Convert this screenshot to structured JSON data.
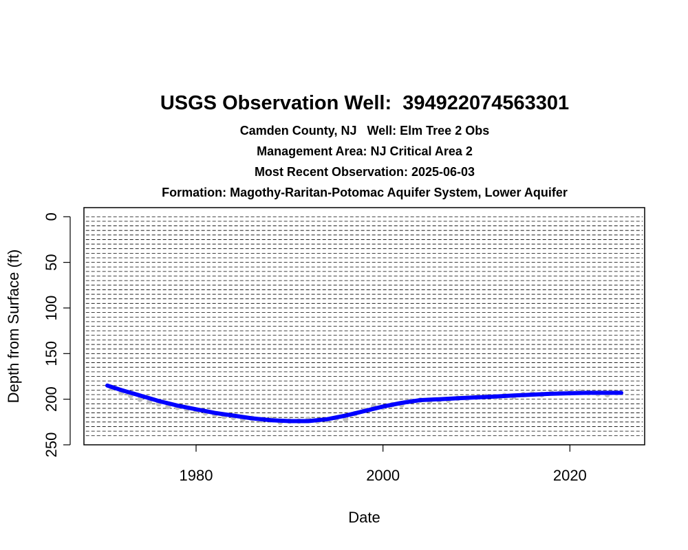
{
  "title": "USGS Observation Well:  394922074563301",
  "subtitles": [
    "Camden County, NJ   Well: Elm Tree 2 Obs",
    "Management Area: NJ Critical Area 2",
    "Most Recent Observation: 2025-06-03",
    "Formation: Magothy-Raritan-Potomac Aquifer System, Lower Aquifer"
  ],
  "colors": {
    "trend": "#0000ff",
    "observations": "#c0c0c0",
    "grid": "#000000"
  },
  "chart_data": {
    "type": "line",
    "xlabel": "Date",
    "ylabel": "Depth from Surface (ft)",
    "xlim": [
      1968,
      2028
    ],
    "ylim": [
      250,
      -10
    ],
    "y_reversed": true,
    "xticks": [
      1980,
      2000,
      2020
    ],
    "yticks": [
      0,
      50,
      100,
      150,
      200,
      250
    ],
    "grid": true,
    "grid_style": "dashed horizontal lines every 5 ft",
    "series": [
      {
        "role": "observations",
        "style": "grey points",
        "x": [
          1971,
          1972,
          1973,
          1974,
          1975,
          1976,
          1977,
          1978,
          1979,
          1980,
          1981,
          1982,
          1983,
          1984,
          1985,
          1986,
          1987,
          1988,
          1989,
          1990,
          1991,
          1992,
          1993,
          1994,
          1995,
          1996,
          1997,
          1998,
          1999,
          2000,
          2001,
          2002,
          2003,
          2004,
          2005,
          2006,
          2007,
          2008,
          2009,
          2010,
          2011,
          2012,
          2013,
          2014,
          2015,
          2016,
          2017,
          2018,
          2019,
          2020,
          2021,
          2022,
          2023,
          2024,
          2025
        ],
        "y": [
          188,
          193,
          196,
          200,
          203,
          205,
          208,
          209,
          211,
          213,
          215,
          217,
          219,
          220,
          222,
          221,
          223,
          222,
          225,
          224,
          224,
          222,
          224,
          223,
          221,
          222,
          216,
          212,
          208,
          209,
          206,
          206,
          202,
          201,
          202,
          201,
          201,
          199,
          199,
          198,
          197,
          198,
          196,
          197,
          195,
          194,
          195,
          193,
          193,
          193,
          192,
          193,
          194,
          195,
          193
        ]
      },
      {
        "role": "trend",
        "style": "thick blue line",
        "x": [
          1970.5,
          1972,
          1974,
          1976,
          1978,
          1980,
          1982,
          1984,
          1986,
          1988,
          1990,
          1992,
          1994,
          1996,
          1998,
          2000,
          2002,
          2004,
          2006,
          2008,
          2010,
          2012,
          2014,
          2016,
          2018,
          2020,
          2022,
          2024,
          2025.5
        ],
        "y": [
          185,
          190,
          196,
          202,
          207,
          211,
          215,
          218,
          221,
          223,
          224,
          224,
          222,
          218,
          213,
          208,
          204,
          201,
          200,
          199,
          198,
          197,
          196,
          195,
          194,
          193.5,
          193,
          193,
          193
        ]
      }
    ]
  }
}
